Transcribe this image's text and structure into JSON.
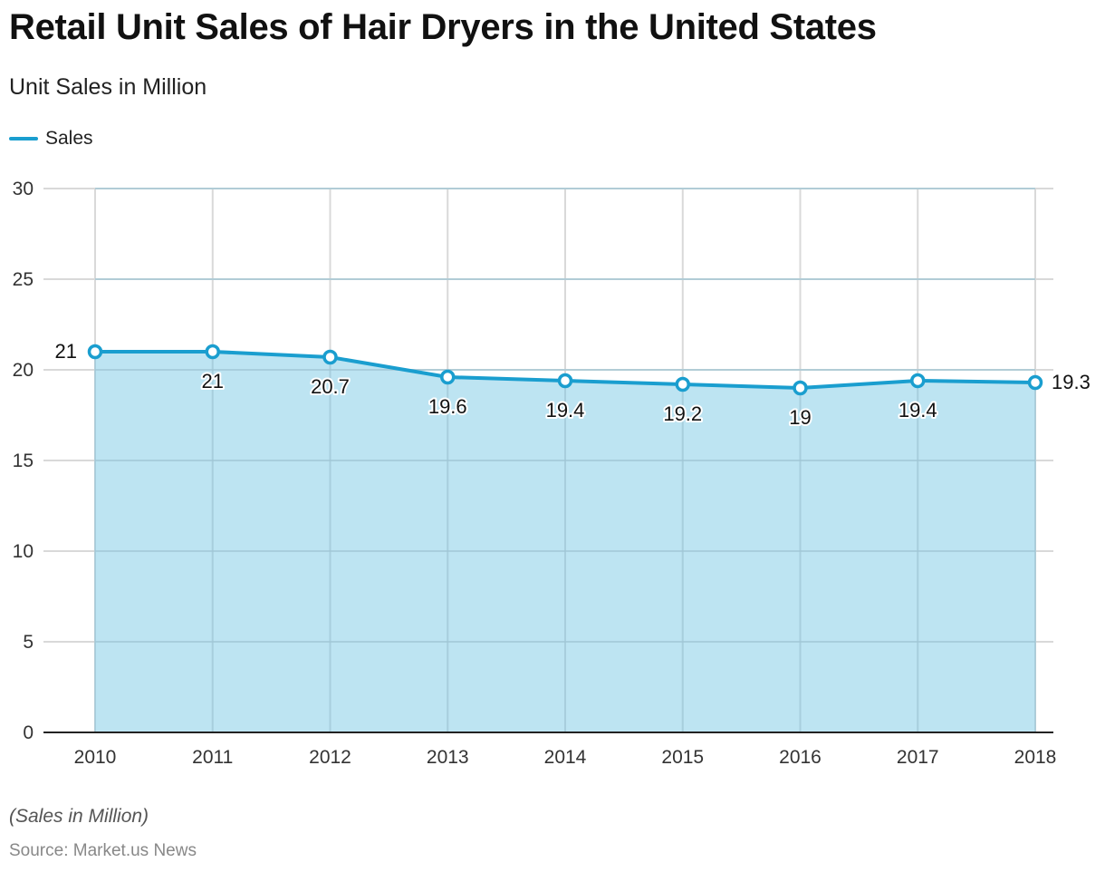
{
  "header": {
    "title": "Retail Unit Sales of Hair Dryers in the United States",
    "subtitle": "Unit Sales in Million"
  },
  "legend": {
    "label": "Sales"
  },
  "colors": {
    "line": "#1a9ecf",
    "area": "#b9e3f1",
    "grid": "#d9d9d9",
    "baseline": "#222222"
  },
  "footer": {
    "note": "(Sales in Million)",
    "source": "Source: Market.us News"
  },
  "chart_data": {
    "type": "area",
    "title": "Retail Unit Sales of Hair Dryers in the United States",
    "subtitle": "Unit Sales in Million",
    "xlabel": "",
    "ylabel": "",
    "categories": [
      "2010",
      "2011",
      "2012",
      "2013",
      "2014",
      "2015",
      "2016",
      "2017",
      "2018"
    ],
    "series": [
      {
        "name": "Sales",
        "values": [
          21,
          21,
          20.7,
          19.6,
          19.4,
          19.2,
          19,
          19.4,
          19.3
        ],
        "labels": [
          "21",
          "21",
          "20.7",
          "19.6",
          "19.4",
          "19.2",
          "19",
          "19.4",
          "19.3"
        ]
      }
    ],
    "ylim": [
      0,
      30
    ],
    "yticks": [
      0,
      5,
      10,
      15,
      20,
      25,
      30
    ],
    "grid": true,
    "legend_position": "top-left"
  }
}
